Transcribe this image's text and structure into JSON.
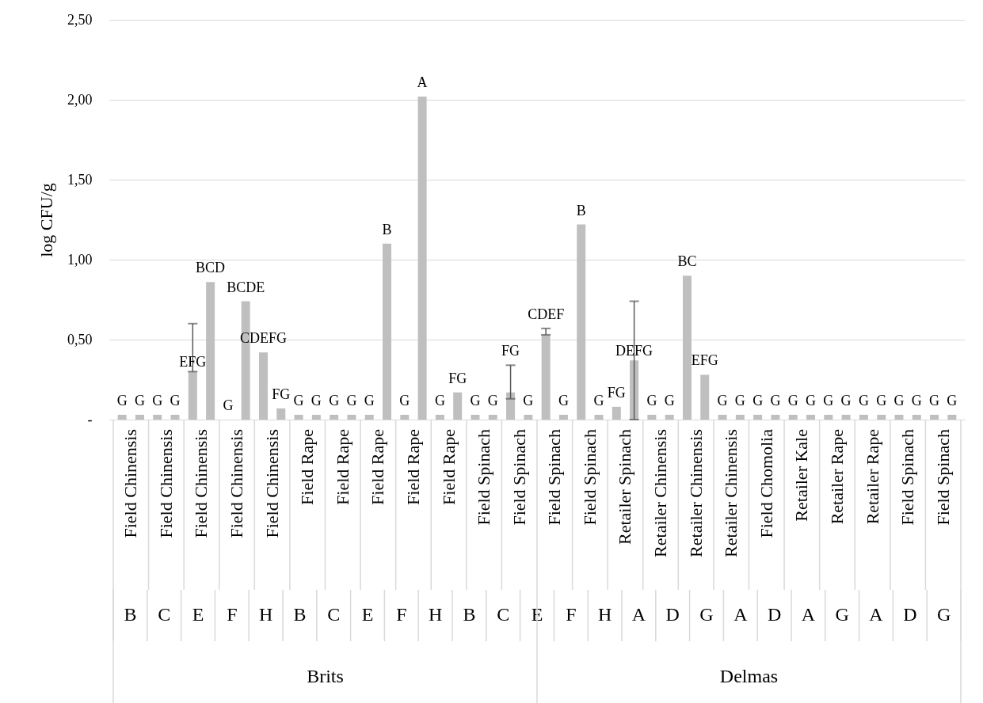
{
  "chart_data": {
    "type": "bar",
    "ylabel": "log CFU/g",
    "categories": [
      "Field Chinensis",
      "Field Chinensis",
      "Field Chinensis",
      "Field Chinensis",
      "Field Chinensis",
      "Field Rape",
      "Field Rape",
      "Field Rape",
      "Field Rape",
      "Field Rape",
      "Field Spinach",
      "Field Spinach",
      "Field Spinach",
      "Field Spinach",
      "Retailer Spinach",
      "Retailer Chinensis",
      "Retailer Chinensis",
      "Retailer Chinensis",
      "Field Chomolia",
      "Retailer Kale",
      "Retailer Rape",
      "Retailer Rape",
      "Field Spinach",
      "Field Spinach"
    ],
    "series": [
      {
        "color": "#bfbfbf",
        "values": [
          0.03,
          0.03,
          0.3,
          0.0,
          0.42,
          0.03,
          0.03,
          0.03,
          0.03,
          0.03,
          0.03,
          0.17,
          0.53,
          1.22,
          0.08,
          0.03,
          0.9,
          0.03,
          0.03,
          0.03,
          0.03,
          0.03,
          0.03,
          0.03
        ],
        "errors": [
          null,
          null,
          [
            0.3,
            0.6
          ],
          null,
          null,
          null,
          null,
          null,
          null,
          null,
          null,
          [
            0.13,
            0.34
          ],
          [
            0.53,
            0.57
          ],
          null,
          null,
          null,
          null,
          null,
          null,
          null,
          null,
          null,
          null,
          null
        ],
        "value_labels": [
          "G",
          "G",
          "EFG",
          "G",
          "CDEFG",
          "G",
          "G",
          "G",
          "G",
          "G",
          "G",
          "FG",
          "CDEF",
          "B",
          "FG",
          "G",
          "BC",
          "G",
          "G",
          "G",
          "G",
          "G",
          "G",
          "G"
        ]
      },
      {
        "color": "#bfbfbf",
        "values": [
          0.03,
          0.03,
          0.86,
          0.74,
          0.07,
          0.03,
          0.03,
          1.1,
          2.02,
          0.17,
          0.03,
          0.03,
          0.03,
          0.03,
          0.37,
          0.03,
          0.28,
          0.03,
          0.03,
          0.03,
          0.03,
          0.03,
          0.03,
          0.03
        ],
        "errors": [
          null,
          null,
          null,
          null,
          null,
          null,
          null,
          null,
          null,
          null,
          null,
          null,
          null,
          null,
          0.37,
          null,
          null,
          null,
          null,
          null,
          null,
          null,
          null,
          null
        ],
        "value_labels": [
          "G",
          "G",
          "BCD",
          "BCDE",
          "FG",
          "G",
          "G",
          "B",
          "A",
          "FG",
          "G",
          "G",
          "G",
          "G",
          "DEFG",
          "G",
          "EFG",
          "G",
          "G",
          "G",
          "G",
          "G",
          "G",
          "G"
        ]
      }
    ],
    "ylim": [
      0,
      2.5
    ],
    "yticks": [
      {
        "value": 0,
        "label": "-"
      },
      {
        "value": 0.5,
        "label": "0,50"
      },
      {
        "value": 1.0,
        "label": "1,00"
      },
      {
        "value": 1.5,
        "label": "1,50"
      },
      {
        "value": 2.0,
        "label": "2,00"
      },
      {
        "value": 2.5,
        "label": "2,50"
      }
    ],
    "grid": "y",
    "annotations": [
      "B",
      "C",
      "E",
      "F",
      "H",
      "B",
      "C",
      "E",
      "F",
      "H",
      "B",
      "C",
      "E",
      "F",
      "H",
      "A",
      "D",
      "G",
      "A",
      "D",
      "A",
      "G",
      "A",
      "D",
      "G",
      "Brits",
      "Delmas"
    ]
  }
}
